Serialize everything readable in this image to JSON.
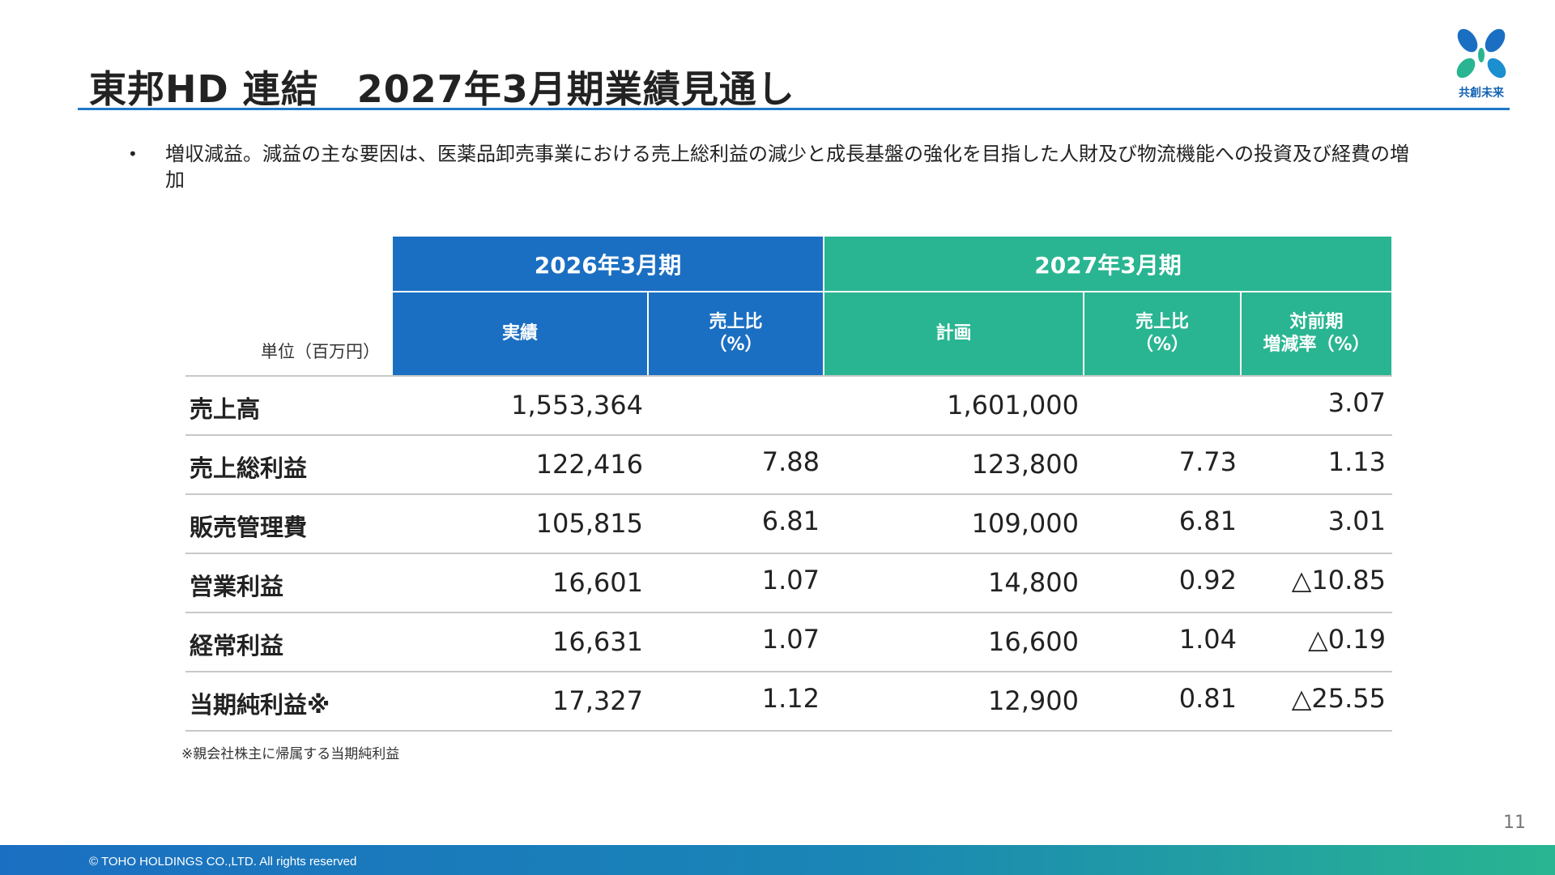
{
  "title": "東邦HD 連結　2027年3月期業績見通し",
  "logo": {
    "text": "共創未来",
    "icon": "butterfly-logo-icon"
  },
  "bullet": {
    "marker": "•",
    "text": "増収減益。減益の主な要因は、医薬品卸売事業における売上総利益の減少と成長基盤の強化を目指した人財及び物流機能への投資及び経費の増加"
  },
  "table": {
    "unit_label": "単位（百万円）",
    "period_headers": [
      "2026年3月期",
      "2027年3月期"
    ],
    "sub_headers": {
      "actual": "実績",
      "ratio_2026": "売上比\n（%）",
      "plan": "計画",
      "ratio_2027": "売上比\n（%）",
      "yoy": "対前期\n増減率（%）"
    },
    "rows": [
      {
        "label": "売上高",
        "actual": "1,553,364",
        "ratio_2026": "",
        "plan": "1,601,000",
        "ratio_2027": "",
        "yoy": "3.07"
      },
      {
        "label": "売上総利益",
        "actual": "122,416",
        "ratio_2026": "7.88",
        "plan": "123,800",
        "ratio_2027": "7.73",
        "yoy": "1.13"
      },
      {
        "label": "販売管理費",
        "actual": "105,815",
        "ratio_2026": "6.81",
        "plan": "109,000",
        "ratio_2027": "6.81",
        "yoy": "3.01"
      },
      {
        "label": "営業利益",
        "actual": "16,601",
        "ratio_2026": "1.07",
        "plan": "14,800",
        "ratio_2027": "0.92",
        "yoy": "△10.85"
      },
      {
        "label": "経常利益",
        "actual": "16,631",
        "ratio_2026": "1.07",
        "plan": "16,600",
        "ratio_2027": "1.04",
        "yoy": "△0.19"
      },
      {
        "label": "当期純利益※",
        "actual": "17,327",
        "ratio_2026": "1.12",
        "plan": "12,900",
        "ratio_2027": "0.81",
        "yoy": "△25.55"
      }
    ],
    "footnote": "※親会社株主に帰属する当期純利益"
  },
  "page_number": "11",
  "copyright": "© TOHO HOLDINGS CO.,LTD. All rights reserved",
  "colors": {
    "blue": "#1b6fc2",
    "green": "#29b591",
    "rule": "#1f78c8"
  }
}
